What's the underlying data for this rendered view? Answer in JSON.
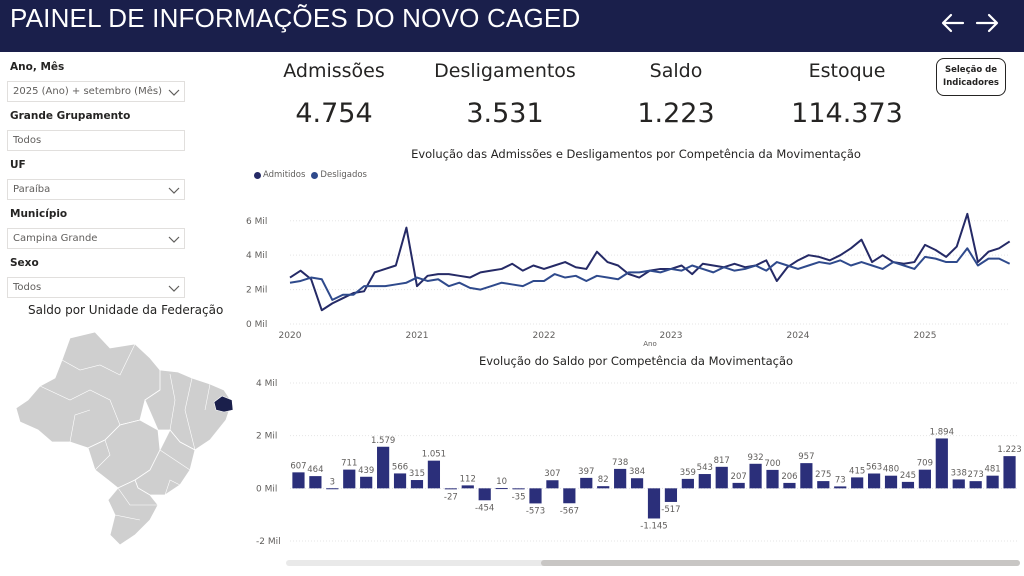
{
  "header": {
    "title": "PAINEL DE INFORMAÇÕES DO NOVO CAGED",
    "back_icon": "arrow-left-icon",
    "forward_icon": "arrow-right-icon"
  },
  "filters": [
    {
      "label": "Ano, Mês",
      "value": "2025 (Ano) + setembro (Mês)"
    },
    {
      "label": "Grande Grupamento",
      "value": "Todos"
    },
    {
      "label": "UF",
      "value": "Paraíba"
    },
    {
      "label": "Município",
      "value": "Campina Grande"
    },
    {
      "label": "Sexo",
      "value": "Todos"
    }
  ],
  "map": {
    "title": "Saldo por Unidade da Federação",
    "highlight_color": "#1a1f4b",
    "base_color": "#cfcfcf"
  },
  "kpis": [
    {
      "label": "Admissões",
      "value": "4.754"
    },
    {
      "label": "Desligamentos",
      "value": "3.531"
    },
    {
      "label": "Saldo",
      "value": "1.223"
    },
    {
      "label": "Estoque",
      "value": "114.373"
    }
  ],
  "indicator_button": {
    "line1": "Seleção de",
    "line2": "Indicadores"
  },
  "colors": {
    "admitidos": "#252a66",
    "desligados": "#2f4a8c",
    "bar": "#2b2f7a",
    "header": "#1a1f4b"
  },
  "chart_data": [
    {
      "type": "line",
      "title": "Evolução das Admissões e Desligamentos por Competência da Movimentação",
      "xlabel": "Ano",
      "ylabel": "",
      "x_ticks": [
        "2020",
        "2021",
        "2022",
        "2023",
        "2024",
        "2025"
      ],
      "y_ticks": [
        "0 Mil",
        "2 Mil",
        "4 Mil",
        "6 Mil"
      ],
      "ylim": [
        0,
        6800
      ],
      "x_start": "2020-01",
      "legend_position": "top-left",
      "series": [
        {
          "name": "Admitidos",
          "values": [
            2700,
            3100,
            2600,
            800,
            1200,
            1500,
            1800,
            1900,
            3000,
            3200,
            3400,
            5600,
            2200,
            2800,
            2900,
            2900,
            2800,
            2700,
            3000,
            3100,
            3200,
            3500,
            3100,
            3400,
            3200,
            3400,
            3600,
            3300,
            3200,
            4200,
            3600,
            3400,
            2900,
            2700,
            3100,
            3200,
            3200,
            3400,
            2900,
            3500,
            3400,
            3300,
            3500,
            3300,
            3400,
            3700,
            2500,
            3300,
            3700,
            4000,
            3900,
            3700,
            4000,
            4400,
            4900,
            3600,
            4000,
            3600,
            3500,
            3600,
            4600,
            4300,
            3900,
            4500,
            6400,
            3600,
            4200,
            4400,
            4800
          ]
        },
        {
          "name": "Desligados",
          "values": [
            2400,
            2500,
            2700,
            2600,
            1400,
            1700,
            1700,
            2200,
            2200,
            2200,
            2300,
            2400,
            2700,
            2500,
            2600,
            2200,
            2400,
            2100,
            2000,
            2200,
            2400,
            2300,
            2200,
            2500,
            2500,
            2900,
            2700,
            2800,
            2500,
            2800,
            2700,
            2600,
            3000,
            3000,
            3100,
            3000,
            3200,
            3100,
            3400,
            3200,
            3000,
            3300,
            3100,
            3200,
            3400,
            3100,
            3600,
            3400,
            3200,
            3400,
            3600,
            3500,
            3700,
            3400,
            3600,
            3400,
            3200,
            3600,
            3400,
            3200,
            3900,
            3800,
            3600,
            3600,
            4400,
            3400,
            3800,
            3800,
            3500
          ]
        }
      ]
    },
    {
      "type": "bar",
      "title": "Evolução do Saldo por Competência da Movimentação",
      "y_ticks": [
        "4 Mil",
        "2 Mil",
        "0 Mil",
        "-2 Mil"
      ],
      "ylim": [
        -2000,
        4000
      ],
      "values": [
        607,
        464,
        3,
        711,
        439,
        1579,
        566,
        315,
        1051,
        -27,
        112,
        -454,
        10,
        -35,
        -573,
        307,
        -567,
        397,
        82,
        738,
        384,
        -1145,
        -517,
        359,
        543,
        817,
        207,
        932,
        700,
        206,
        957,
        275,
        73,
        415,
        563,
        480,
        245,
        709,
        1894,
        338,
        273,
        481,
        1223
      ],
      "labels": [
        "607",
        "464",
        "3",
        "711",
        "439",
        "1.579",
        "566",
        "315",
        "1.051",
        "-27",
        "112",
        "-454",
        "10",
        "-35",
        "-573",
        "307",
        "-567",
        "397",
        "82",
        "738",
        "384",
        "-1.145",
        "-517",
        "359",
        "543",
        "817",
        "207",
        "932",
        "700",
        "206",
        "957",
        "275",
        "73",
        "415",
        "563",
        "480",
        "245",
        "709",
        "1.894",
        "338",
        "273",
        "481",
        "1.223"
      ]
    }
  ]
}
